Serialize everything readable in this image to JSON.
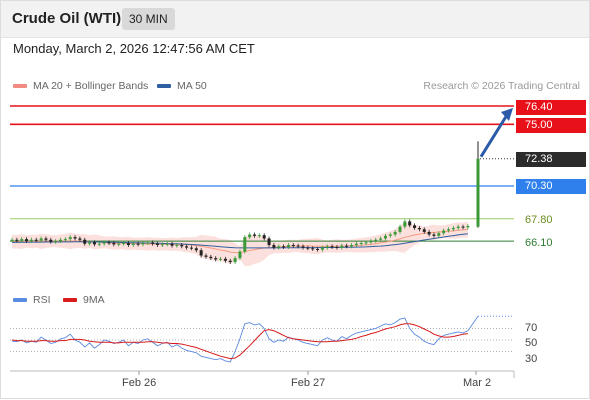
{
  "header": {
    "title": "Crude Oil (WTI)",
    "interval": "30 MIN"
  },
  "timestamp": "Monday, March 2, 2026 12:47:56 AM CET",
  "legend": {
    "bb_label": "MA 20 + Bollinger Bands",
    "ma50_label": "MA 50",
    "credit": "Research © 2026 Trading Central",
    "rsi_label": "RSI",
    "ma9_label": "9MA"
  },
  "colors": {
    "resistance": "#e8111a",
    "support": "#2f80ed",
    "pivot_green": "#9ccc65",
    "ma20": "#f39c80",
    "ma50": "#2f5fa0",
    "bull": "#3a9a3a",
    "bear": "#222222",
    "band_fill": "#fbd6d2",
    "rsi": "#5b8be0",
    "ma9": "#d81b1b",
    "arrow": "#2a5aa8"
  },
  "levels": {
    "r2": "76.40",
    "r1": "75.00",
    "last": "72.38",
    "s1": "70.30",
    "s2": "67.80",
    "s3": "66.10"
  },
  "x_axis": {
    "labels": [
      "Feb 26",
      "Feb 27",
      "Mar 2"
    ]
  },
  "rsi_axis": {
    "labels": [
      "70",
      "50",
      "30"
    ]
  },
  "chart_data": {
    "type": "line",
    "price": {
      "levels": [
        76.4,
        75.0,
        72.38,
        70.3,
        67.8,
        66.1
      ],
      "close": [
        66.2,
        66.15,
        66.25,
        66.1,
        66.2,
        66.15,
        66.3,
        66.2,
        66.05,
        66.1,
        66.2,
        66.25,
        66.4,
        66.3,
        66.2,
        65.9,
        66.0,
        65.85,
        65.9,
        66.0,
        65.95,
        65.85,
        65.9,
        65.95,
        65.8,
        65.9,
        65.85,
        65.95,
        66.0,
        65.9,
        65.8,
        65.85,
        65.9,
        65.75,
        65.8,
        65.7,
        65.6,
        65.55,
        65.4,
        65.0,
        64.9,
        64.8,
        64.7,
        64.75,
        64.6,
        64.5,
        64.8,
        65.3,
        66.4,
        66.6,
        66.5,
        66.55,
        66.3,
        65.8,
        65.6,
        65.7,
        65.65,
        65.8,
        65.75,
        65.7,
        65.6,
        65.55,
        65.5,
        65.45,
        65.6,
        65.7,
        65.65,
        65.6,
        65.75,
        65.7,
        65.8,
        65.9,
        65.95,
        66.0,
        66.1,
        66.2,
        66.3,
        66.5,
        66.6,
        66.8,
        67.2,
        67.6,
        67.3,
        67.1,
        67.0,
        66.8,
        66.6,
        66.5,
        66.7,
        66.9,
        67.0,
        67.1,
        67.2,
        67.15,
        67.25
      ],
      "ma20": [
        66.05,
        66.05,
        66.06,
        66.07,
        66.07,
        66.08,
        66.08,
        66.09,
        66.09,
        66.09,
        66.1,
        66.1,
        66.11,
        66.11,
        66.1,
        66.08,
        66.06,
        66.04,
        66.02,
        66.0,
        65.98,
        65.96,
        65.94,
        65.93,
        65.92,
        65.9,
        65.89,
        65.89,
        65.88,
        65.88,
        65.87,
        65.87,
        65.86,
        65.86,
        65.85,
        65.84,
        65.82,
        65.79,
        65.76,
        65.7,
        65.64,
        65.57,
        65.5,
        65.42,
        65.35,
        65.27,
        65.22,
        65.22,
        65.3,
        65.38,
        65.45,
        65.52,
        65.57,
        65.6,
        65.62,
        65.65,
        65.68,
        65.7,
        65.72,
        65.73,
        65.73,
        65.73,
        65.72,
        65.72,
        65.7,
        65.7,
        65.71,
        65.72,
        65.72,
        65.73,
        65.74,
        65.76,
        65.78,
        65.81,
        65.85,
        65.9,
        65.96,
        66.02,
        66.09,
        66.17,
        66.27,
        66.39,
        66.48,
        66.56,
        66.63,
        66.69,
        66.73,
        66.76,
        66.79,
        66.82,
        66.84,
        66.88,
        66.92,
        66.95,
        66.98
      ],
      "ma50": [
        66.0,
        66.0,
        66.01,
        66.01,
        66.02,
        66.02,
        66.02,
        66.03,
        66.03,
        66.03,
        66.04,
        66.04,
        66.04,
        66.05,
        66.05,
        66.04,
        66.04,
        66.03,
        66.03,
        66.02,
        66.01,
        66.01,
        66.0,
        65.99,
        65.98,
        65.97,
        65.96,
        65.96,
        65.95,
        65.94,
        65.93,
        65.92,
        65.91,
        65.9,
        65.89,
        65.88,
        65.86,
        65.84,
        65.82,
        65.79,
        65.76,
        65.73,
        65.7,
        65.67,
        65.64,
        65.61,
        65.59,
        65.58,
        65.58,
        65.58,
        65.58,
        65.58,
        65.58,
        65.58,
        65.58,
        65.58,
        65.59,
        65.59,
        65.59,
        65.59,
        65.6,
        65.6,
        65.6,
        65.6,
        65.61,
        65.61,
        65.61,
        65.62,
        65.62,
        65.63,
        65.63,
        65.64,
        65.65,
        65.66,
        65.68,
        65.7,
        65.72,
        65.75,
        65.79,
        65.83,
        65.88,
        65.94,
        66.0,
        66.06,
        66.12,
        66.18,
        66.24,
        66.3,
        66.35,
        66.41,
        66.47,
        66.52,
        66.57,
        66.62,
        66.66
      ],
      "last_bar": {
        "open": 67.2,
        "high": 73.7,
        "low": 67.2,
        "close": 72.38
      }
    },
    "rsi": {
      "ylim": [
        0,
        100
      ],
      "levels": [
        70,
        50,
        30
      ],
      "rsi": [
        48,
        47,
        50,
        45,
        48,
        46,
        55,
        50,
        44,
        46,
        52,
        54,
        60,
        50,
        46,
        38,
        45,
        36,
        42,
        50,
        48,
        44,
        46,
        50,
        40,
        46,
        44,
        50,
        52,
        46,
        40,
        44,
        46,
        38,
        42,
        36,
        32,
        30,
        28,
        22,
        20,
        18,
        16,
        18,
        14,
        12,
        30,
        52,
        78,
        80,
        76,
        78,
        70,
        52,
        46,
        50,
        48,
        55,
        52,
        50,
        46,
        44,
        42,
        40,
        50,
        54,
        50,
        48,
        56,
        52,
        58,
        62,
        64,
        66,
        68,
        70,
        74,
        78,
        76,
        80,
        86,
        88,
        70,
        60,
        55,
        48,
        44,
        42,
        52,
        58,
        60,
        62,
        64,
        62,
        66
      ],
      "ma9": [
        50,
        49,
        49,
        48,
        48,
        48,
        49,
        49,
        48,
        48,
        49,
        49,
        51,
        51,
        51,
        50,
        48,
        47,
        46,
        46,
        46,
        45,
        45,
        46,
        46,
        46,
        46,
        46,
        47,
        47,
        46,
        45,
        45,
        44,
        44,
        43,
        41,
        39,
        37,
        34,
        31,
        28,
        25,
        22,
        20,
        18,
        19,
        24,
        32,
        40,
        49,
        58,
        66,
        68,
        66,
        62,
        58,
        54,
        52,
        51,
        50,
        49,
        48,
        47,
        47,
        47,
        48,
        48,
        49,
        50,
        51,
        53,
        56,
        58,
        61,
        63,
        66,
        69,
        71,
        73,
        76,
        78,
        78,
        76,
        73,
        69,
        65,
        60,
        57,
        55,
        55,
        56,
        58,
        60,
        61
      ],
      "last_rsi": 91
    },
    "x_labels": [
      "Feb 26",
      "Feb 27",
      "Mar 2"
    ]
  }
}
